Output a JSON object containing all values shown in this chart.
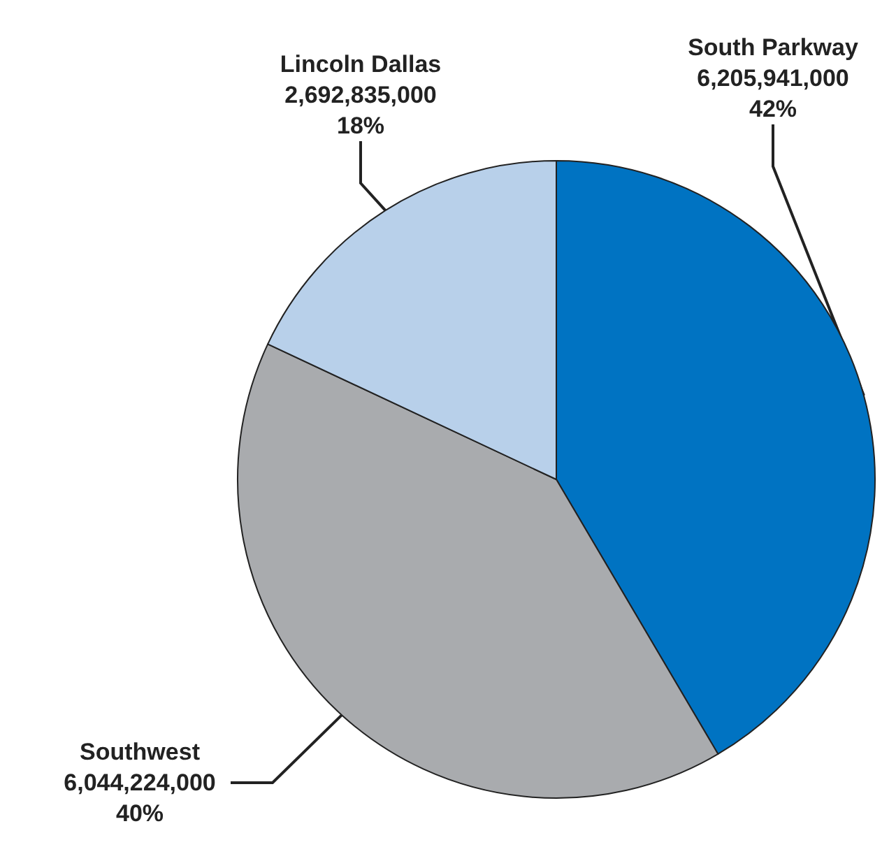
{
  "chart_data": {
    "type": "pie",
    "categories": [
      "South Parkway",
      "Southwest",
      "Lincoln Dallas"
    ],
    "values": [
      6205941000,
      6044224000,
      2692835000
    ],
    "value_labels": [
      "6,205,941,000\n42%",
      "6,044,224,000\n40%",
      "2,692,835,000\n18%"
    ],
    "colors": [
      "#0073c2",
      "#a9abae",
      "#b8d0ea"
    ],
    "legend": false
  }
}
